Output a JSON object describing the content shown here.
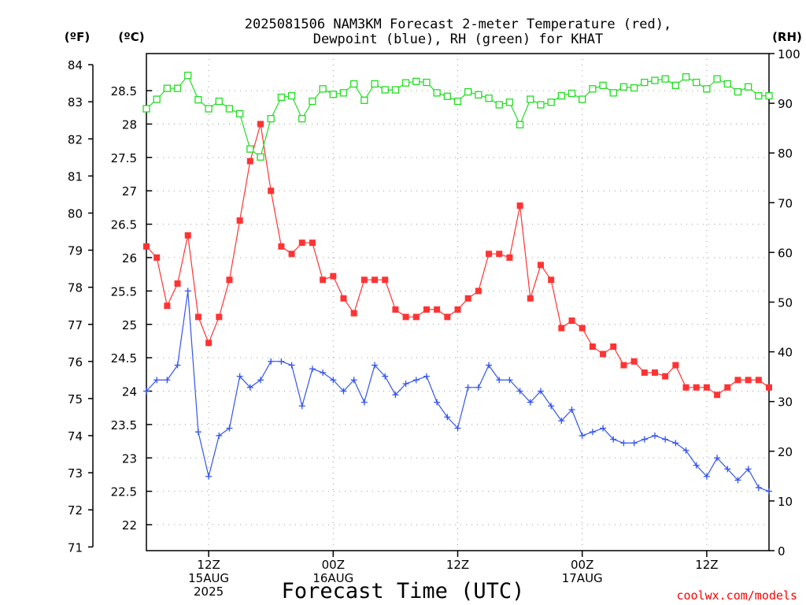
{
  "chart_data": {
    "type": "line",
    "title_lines": [
      "2025081506 NAM3KM Forecast 2-meter Temperature (red),",
      "Dewpoint (blue), RH (green) for KHAT"
    ],
    "xlabel": "Forecast Time (UTC)",
    "credit": "coolwx.com/models",
    "units": {
      "fahrenheit": "(ºF)",
      "celsius": "(ºC)",
      "rh": "(RH)"
    },
    "x_hours_range": [
      0,
      60
    ],
    "x_ticks": [
      {
        "hour": 6,
        "lines": [
          "12Z",
          "15AUG",
          "2025"
        ]
      },
      {
        "hour": 18,
        "lines": [
          "00Z",
          "16AUG"
        ]
      },
      {
        "hour": 30,
        "lines": [
          "12Z"
        ]
      },
      {
        "hour": 42,
        "lines": [
          "00Z",
          "17AUG"
        ]
      },
      {
        "hour": 54,
        "lines": [
          "12Z"
        ]
      }
    ],
    "y_fahrenheit": {
      "range": [
        70.9,
        84.3
      ],
      "ticks": [
        71,
        72,
        73,
        74,
        75,
        76,
        77,
        78,
        79,
        80,
        81,
        82,
        83,
        84
      ]
    },
    "y_celsius": {
      "ticks": [
        "22",
        "22.5",
        "23",
        "23.5",
        "24",
        "24.5",
        "25",
        "25.5",
        "26",
        "26.5",
        "27",
        "27.5",
        "28",
        "28.5"
      ]
    },
    "y_rh": {
      "range": [
        0,
        100
      ],
      "ticks": [
        0,
        10,
        20,
        30,
        40,
        50,
        60,
        70,
        80,
        90,
        100
      ]
    },
    "grid": true,
    "series": [
      {
        "name": "2-meter Temperature",
        "color": "#ff3333",
        "axis": "fahrenheit",
        "marker": "filled-square",
        "values": [
          79.1,
          78.8,
          77.5,
          78.1,
          79.4,
          77.2,
          76.5,
          77.2,
          78.2,
          79.8,
          81.4,
          82.4,
          80.6,
          79.1,
          78.9,
          79.2,
          79.2,
          78.2,
          78.3,
          77.7,
          77.3,
          78.2,
          78.2,
          78.2,
          77.4,
          77.2,
          77.2,
          77.4,
          77.4,
          77.2,
          77.4,
          77.7,
          77.9,
          78.9,
          78.9,
          78.8,
          80.2,
          77.7,
          78.6,
          78.2,
          76.9,
          77.1,
          76.9,
          76.4,
          76.2,
          76.4,
          75.9,
          76.0,
          75.7,
          75.7,
          75.6,
          75.9,
          75.3,
          75.3,
          75.3,
          75.1,
          75.3,
          75.5,
          75.5,
          75.5,
          75.3
        ]
      },
      {
        "name": "Dewpoint",
        "color": "#3355ee",
        "axis": "fahrenheit",
        "marker": "plus",
        "values": [
          75.2,
          75.5,
          75.5,
          75.9,
          77.9,
          74.1,
          72.9,
          74.0,
          74.2,
          75.6,
          75.3,
          75.5,
          76.0,
          76.0,
          75.9,
          74.8,
          75.8,
          75.7,
          75.5,
          75.2,
          75.5,
          74.9,
          75.9,
          75.6,
          75.1,
          75.4,
          75.5,
          75.6,
          74.9,
          74.5,
          74.2,
          75.3,
          75.3,
          75.9,
          75.5,
          75.5,
          75.2,
          74.9,
          75.2,
          74.8,
          74.4,
          74.7,
          74.0,
          74.1,
          74.2,
          73.9,
          73.8,
          73.8,
          73.9,
          74.0,
          73.9,
          73.8,
          73.6,
          73.2,
          72.9,
          73.4,
          73.1,
          72.8,
          73.1,
          72.6,
          72.5
        ]
      },
      {
        "name": "RH",
        "color": "#22dd22",
        "axis": "rh",
        "marker": "open-square",
        "values": [
          88.9,
          90.8,
          93.0,
          93.0,
          95.6,
          90.7,
          88.9,
          90.4,
          88.9,
          87.9,
          80.8,
          79.2,
          86.9,
          91.2,
          91.5,
          86.9,
          90.4,
          92.9,
          91.8,
          92.1,
          93.9,
          90.6,
          93.9,
          92.7,
          92.7,
          94.1,
          94.4,
          94.2,
          92.1,
          91.4,
          90.4,
          92.3,
          91.7,
          91.0,
          89.7,
          90.2,
          85.7,
          90.8,
          89.7,
          90.2,
          91.5,
          92.0,
          90.8,
          92.9,
          93.6,
          92.1,
          93.3,
          93.1,
          94.2,
          94.6,
          94.9,
          93.6,
          95.3,
          94.2,
          92.9,
          94.9,
          93.9,
          92.3,
          93.3,
          91.5,
          91.5
        ]
      }
    ]
  }
}
